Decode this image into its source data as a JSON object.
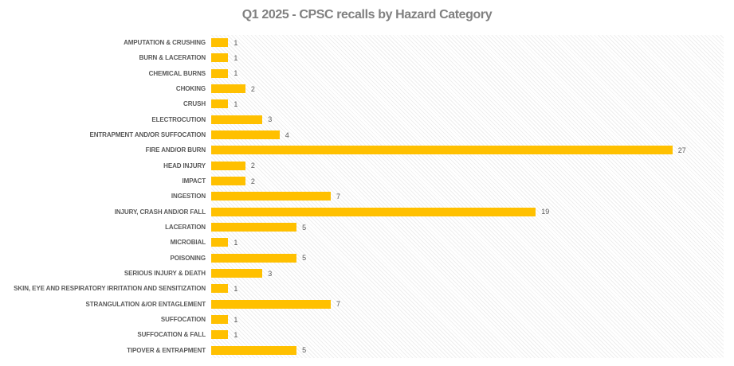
{
  "chart_data": {
    "type": "bar",
    "orientation": "horizontal",
    "title": "Q1 2025 - CPSC recalls by Hazard Category",
    "categories": [
      "AMPUTATION & CRUSHING",
      "BURN & LACERATION",
      "CHEMICAL BURNS",
      "CHOKING",
      "CRUSH",
      "ELECTROCUTION",
      "ENTRAPMENT AND/OR SUFFOCATION",
      "FIRE AND/OR BURN",
      "HEAD INJURY",
      "IMPACT",
      "INGESTION",
      "INJURY, CRASH AND/OR FALL",
      "LACERATION",
      "MICROBIAL",
      "POISONING",
      "SERIOUS INJURY & DEATH",
      "SKIN, EYE AND RESPIRATORY IRRITATION AND SENSITIZATION",
      "STRANGULATION &/OR ENTAGLEMENT",
      "SUFFOCATION",
      "SUFFOCATION & FALL",
      "TIPOVER & ENTRAPMENT"
    ],
    "values": [
      1,
      1,
      1,
      2,
      1,
      3,
      4,
      27,
      2,
      2,
      7,
      19,
      5,
      1,
      5,
      3,
      1,
      7,
      1,
      1,
      5
    ],
    "xlabel": "",
    "ylabel": "",
    "xlim": [
      0,
      30
    ],
    "grid": false,
    "legend": false,
    "data_labels": true,
    "bar_color": "#FFC000",
    "title_color": "#808080",
    "label_color": "#595959",
    "plot_background": "light-diagonal-hatch"
  }
}
